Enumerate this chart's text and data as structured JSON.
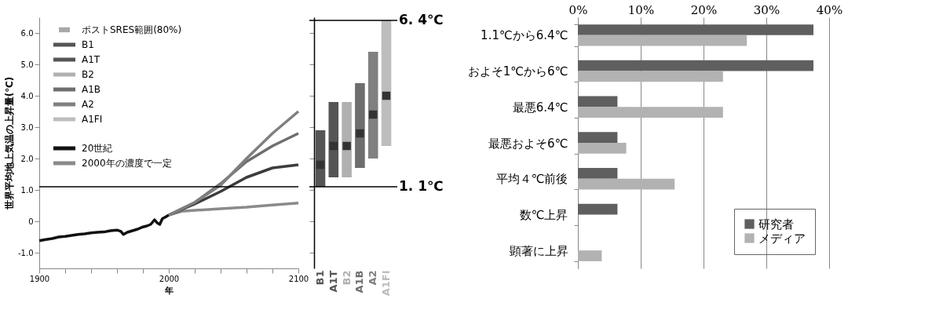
{
  "chart_data": [
    {
      "type": "line",
      "xlabel": "年",
      "ylabel": "世界平均地上気温の上昇量(℃)",
      "xlim": [
        1900,
        2100
      ],
      "xticks": [
        1900,
        {
          "value": 1920,
          "label": null
        },
        {
          "value": 1940,
          "label": null
        },
        {
          "value": 1960,
          "label": null
        },
        {
          "value": 1980,
          "label": null
        },
        2000,
        {
          "value": 2020,
          "label": null
        },
        {
          "value": 2040,
          "label": null
        },
        {
          "value": 2060,
          "label": null
        },
        {
          "value": 2080,
          "label": null
        },
        2100
      ],
      "ylim": [
        -1.5,
        6.5
      ],
      "yticks": [
        {
          "value": -1,
          "label": "-1.0"
        },
        0,
        {
          "value": 1,
          "label": "1.0"
        },
        {
          "value": 2,
          "label": "2.0"
        },
        {
          "value": 3,
          "label": "3.0"
        },
        {
          "value": 4,
          "label": "4.0"
        },
        {
          "value": 5,
          "label": "5.0"
        },
        {
          "value": 6,
          "label": "6.0"
        }
      ],
      "grid": false,
      "legend": "top left",
      "line_style": "solid",
      "ref_lines": [
        {
          "axis": "y",
          "value": 1.1,
          "color": "#000000"
        }
      ],
      "series": [
        {
          "name": "20世紀",
          "color": "#111111",
          "x": [
            1900,
            1905,
            1910,
            1915,
            1920,
            1925,
            1930,
            1935,
            1940,
            1945,
            1950,
            1955,
            1960,
            1963,
            1965,
            1968,
            1972,
            1976,
            1980,
            1983,
            1986,
            1989,
            1991,
            1993,
            1995,
            1998,
            2000
          ],
          "values": [
            -0.62,
            -0.58,
            -0.55,
            -0.5,
            -0.48,
            -0.45,
            -0.42,
            -0.4,
            -0.37,
            -0.35,
            -0.34,
            -0.3,
            -0.28,
            -0.32,
            -0.42,
            -0.35,
            -0.3,
            -0.25,
            -0.18,
            -0.15,
            -0.1,
            0.05,
            -0.05,
            -0.1,
            0.08,
            0.15,
            0.2
          ]
        },
        {
          "name": "2000年の濃度で一定",
          "color": "#8a8a8a",
          "x": [
            2000,
            2010,
            2020,
            2040,
            2060,
            2080,
            2100
          ],
          "values": [
            0.2,
            0.32,
            0.35,
            0.4,
            0.45,
            0.52,
            0.58
          ]
        },
        {
          "color": "#3c3c3c",
          "x": [
            2000,
            2020,
            2040,
            2060,
            2080,
            2100
          ],
          "values": [
            0.2,
            0.55,
            0.95,
            1.4,
            1.7,
            1.8
          ]
        },
        {
          "color": "#6e6e6e",
          "x": [
            2000,
            2020,
            2040,
            2060,
            2080,
            2100
          ],
          "values": [
            0.2,
            0.6,
            1.2,
            1.9,
            2.4,
            2.8
          ]
        },
        {
          "color": "#7f7f7f",
          "x": [
            2000,
            2020,
            2040,
            2060,
            2080,
            2100
          ],
          "values": [
            0.2,
            0.6,
            1.15,
            2.0,
            2.8,
            3.5
          ]
        }
      ]
    },
    {
      "type": "bar",
      "categories": [
        "B1",
        "A1T",
        "B2",
        "A1B",
        "A2",
        "A1FI"
      ],
      "tick_labels": "x",
      "ylim": [
        -1.5,
        6.5
      ],
      "yticks": [
        -1,
        0,
        1,
        2,
        3,
        4,
        5,
        6
      ],
      "ref_lines": [
        {
          "axis": "y",
          "value": 6.4,
          "label": "6. 4℃",
          "color": "#000000"
        },
        {
          "axis": "y",
          "value": 1.1,
          "label": "1. 1℃",
          "color": "#000000"
        }
      ],
      "series": [
        {
          "name": "ポストSRES範囲(80%)",
          "type": "bar",
          "color": "#a8a8a8",
          "base": [
            1.1,
            1.4,
            1.4,
            1.7,
            2.0,
            2.4
          ],
          "values": [
            1.8,
            2.4,
            2.4,
            2.7,
            3.4,
            4.0
          ],
          "colors": [
            "#555555",
            "#555555",
            "#b0b0b0",
            "#6e6e6e",
            "#808080",
            "#bdbdbd"
          ]
        },
        {
          "type": "scatter",
          "color": "#333333",
          "marker": "square",
          "x": [
            "B1",
            "A1T",
            "B2",
            "A1B",
            "A2",
            "A1FI"
          ],
          "values": [
            1.8,
            2.4,
            2.4,
            2.8,
            3.4,
            4.0
          ]
        }
      ]
    },
    {
      "type": "bar",
      "orientation": "horizontal",
      "categories": [
        "1.1℃から6.4℃",
        "およそ1℃から6℃",
        "最悪6.4℃",
        "最悪およそ6℃",
        "平均４℃前後",
        "数℃上昇",
        "顕著に上昇"
      ],
      "xlim": [
        0,
        40
      ],
      "xticks": [
        {
          "value": 0,
          "label": "0%"
        },
        {
          "value": 10,
          "label": "10%"
        },
        {
          "value": 20,
          "label": "20%"
        },
        {
          "value": 30,
          "label": "30%"
        },
        {
          "value": 40,
          "label": "40%"
        }
      ],
      "grid": "x",
      "legend": "bottom right",
      "series": [
        {
          "name": "研究者",
          "color": "#5f5f5f",
          "values": [
            37.5,
            37.5,
            6.3,
            6.3,
            6.3,
            6.3,
            0
          ]
        },
        {
          "name": "メディア",
          "color": "#b2b2b2",
          "values": [
            26.9,
            23.1,
            23.1,
            7.7,
            15.4,
            0,
            3.8
          ]
        }
      ]
    }
  ]
}
